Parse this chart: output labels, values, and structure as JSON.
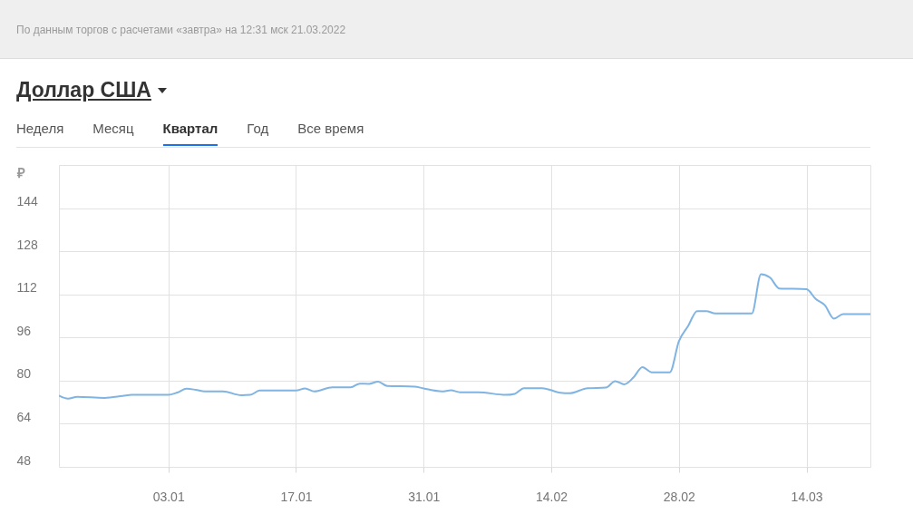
{
  "chart_data": {
    "type": "line",
    "title": "Доллар США",
    "ylabel": "₽",
    "annotations": [
      "По данным торгов с расчетами «завтра» на 12:31 мск 21.03.2022",
      "Неделя",
      "Месяц",
      "Квартал",
      "Год",
      "Все время"
    ],
    "x": [
      "2021-12-22",
      "2021-12-23",
      "2021-12-24",
      "2021-12-27",
      "2021-12-29",
      "2021-12-30",
      "2022-01-03",
      "2022-01-04",
      "2022-01-05",
      "2022-01-06",
      "2022-01-07",
      "2022-01-09",
      "2022-01-11",
      "2022-01-12",
      "2022-01-13",
      "2022-01-17",
      "2022-01-18",
      "2022-01-19",
      "2022-01-21",
      "2022-01-23",
      "2022-01-24",
      "2022-01-25",
      "2022-01-26",
      "2022-01-27",
      "2022-01-30",
      "2022-01-31",
      "2022-02-02",
      "2022-02-03",
      "2022-02-04",
      "2022-02-06",
      "2022-02-09",
      "2022-02-10",
      "2022-02-11",
      "2022-02-13",
      "2022-02-15",
      "2022-02-16",
      "2022-02-18",
      "2022-02-20",
      "2022-02-21",
      "2022-02-22",
      "2022-02-23",
      "2022-02-24",
      "2022-02-25",
      "2022-02-27",
      "2022-02-28",
      "2022-03-01",
      "2022-03-02",
      "2022-03-03",
      "2022-03-04",
      "2022-03-08",
      "2022-03-09",
      "2022-03-10",
      "2022-03-11",
      "2022-03-14",
      "2022-03-15",
      "2022-03-16",
      "2022-03-17",
      "2022-03-18",
      "2022-03-21"
    ],
    "series": [
      {
        "color": "#80b4e2",
        "values": [
          74.4,
          73.3,
          74.0,
          73.6,
          74.3,
          74.7,
          74.7,
          75.6,
          77.0,
          76.6,
          76.0,
          76.0,
          74.6,
          74.7,
          76.3,
          76.3,
          77.1,
          76.0,
          77.5,
          77.5,
          78.9,
          78.8,
          79.6,
          78.0,
          77.8,
          77.1,
          76.0,
          76.4,
          75.7,
          75.7,
          74.7,
          75.1,
          77.2,
          77.2,
          75.5,
          75.3,
          77.2,
          77.4,
          79.8,
          78.6,
          81.1,
          85.0,
          83.1,
          83.1,
          94.6,
          100.2,
          105.8,
          105.8,
          104.9,
          104.9,
          119.5,
          118.2,
          114.2,
          113.9,
          110.3,
          108.0,
          103.0,
          104.7,
          104.7
        ]
      }
    ],
    "xlim": [
      "2021-12-22",
      "2022-03-21"
    ],
    "xticks": [
      {
        "value": "2022-01-03",
        "label": "03.01"
      },
      {
        "value": "2022-01-17",
        "label": "17.01"
      },
      {
        "value": "2022-01-31",
        "label": "31.01"
      },
      {
        "value": "2022-02-14",
        "label": "14.02"
      },
      {
        "value": "2022-02-28",
        "label": "28.02"
      },
      {
        "value": "2022-03-14",
        "label": "14.03"
      }
    ],
    "ylim": [
      48,
      160
    ],
    "yticks": [
      48,
      64,
      80,
      96,
      112,
      128,
      144
    ],
    "grid": true,
    "marker": "none",
    "line_style": "solid",
    "legend": false
  }
}
